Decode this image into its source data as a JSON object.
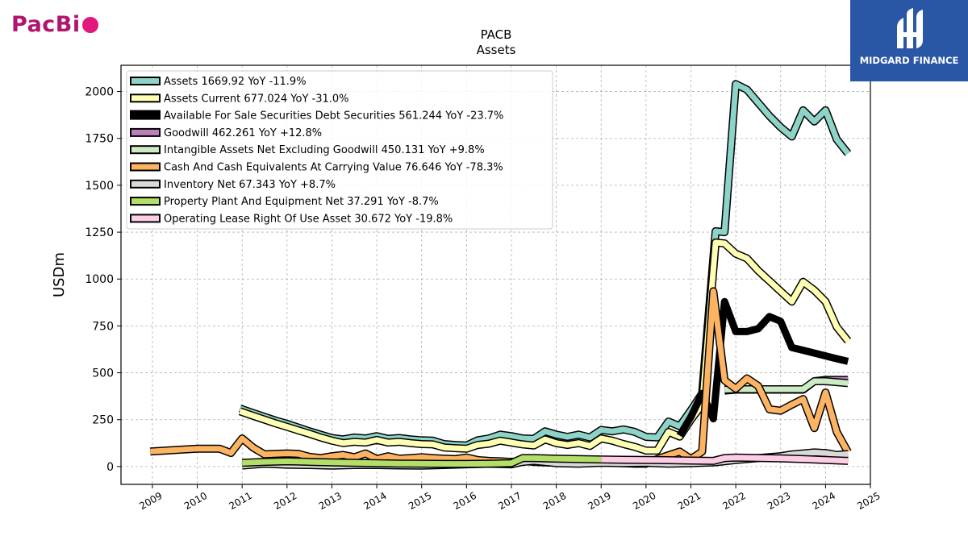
{
  "logos": {
    "left_text": "PacBi",
    "right_text": "MIDGARD FINANCE"
  },
  "chart_data": {
    "type": "line",
    "title": "PACB",
    "subtitle": "Assets",
    "ylabel": "USDm",
    "xlabel": "",
    "xlim": [
      2008.3,
      2025.0
    ],
    "ylim": [
      -95,
      2140
    ],
    "yticks": [
      0,
      250,
      500,
      750,
      1000,
      1250,
      1500,
      1750,
      2000
    ],
    "xticks": [
      "2009",
      "2010",
      "2011",
      "2012",
      "2013",
      "2014",
      "2015",
      "2016",
      "2017",
      "2018",
      "2019",
      "2020",
      "2021",
      "2022",
      "2023",
      "2024",
      "2025"
    ],
    "grid": true,
    "legend_position": "top-left",
    "series": [
      {
        "name": "Assets",
        "legend": "Assets  1669.92 YoY -11.9%",
        "color": "#8dd3c7",
        "width": 7,
        "points": [
          [
            2010.95,
            310
          ],
          [
            2011.25,
            285
          ],
          [
            2011.5,
            265
          ],
          [
            2011.75,
            245
          ],
          [
            2012.0,
            228
          ],
          [
            2012.25,
            208
          ],
          [
            2012.5,
            188
          ],
          [
            2012.75,
            170
          ],
          [
            2013.0,
            152
          ],
          [
            2013.25,
            145
          ],
          [
            2013.5,
            155
          ],
          [
            2013.75,
            150
          ],
          [
            2014.0,
            162
          ],
          [
            2014.25,
            148
          ],
          [
            2014.5,
            152
          ],
          [
            2014.75,
            145
          ],
          [
            2015.0,
            140
          ],
          [
            2015.25,
            138
          ],
          [
            2015.5,
            120
          ],
          [
            2015.75,
            115
          ],
          [
            2016.0,
            112
          ],
          [
            2016.25,
            140
          ],
          [
            2016.5,
            150
          ],
          [
            2016.75,
            170
          ],
          [
            2017.0,
            162
          ],
          [
            2017.25,
            150
          ],
          [
            2017.5,
            148
          ],
          [
            2017.75,
            188
          ],
          [
            2018.0,
            170
          ],
          [
            2018.25,
            158
          ],
          [
            2018.5,
            170
          ],
          [
            2018.75,
            155
          ],
          [
            2019.0,
            195
          ],
          [
            2019.25,
            188
          ],
          [
            2019.5,
            198
          ],
          [
            2019.75,
            185
          ],
          [
            2020.0,
            158
          ],
          [
            2020.25,
            155
          ],
          [
            2020.5,
            240
          ],
          [
            2020.75,
            215
          ],
          [
            2021.0,
            300
          ],
          [
            2021.25,
            390
          ],
          [
            2021.55,
            1255
          ],
          [
            2021.75,
            1250
          ],
          [
            2022.0,
            2040
          ],
          [
            2022.25,
            2010
          ],
          [
            2022.5,
            1940
          ],
          [
            2022.75,
            1870
          ],
          [
            2023.0,
            1810
          ],
          [
            2023.25,
            1760
          ],
          [
            2023.5,
            1900
          ],
          [
            2023.75,
            1840
          ],
          [
            2024.0,
            1900
          ],
          [
            2024.25,
            1745
          ],
          [
            2024.5,
            1670
          ]
        ]
      },
      {
        "name": "Assets Current",
        "legend": "Assets Current  677.024 YoY -31.0%",
        "color": "#ffffb3",
        "width": 7,
        "points": [
          [
            2010.95,
            295
          ],
          [
            2011.25,
            270
          ],
          [
            2011.5,
            250
          ],
          [
            2011.75,
            230
          ],
          [
            2012.0,
            212
          ],
          [
            2012.25,
            193
          ],
          [
            2012.5,
            175
          ],
          [
            2012.75,
            155
          ],
          [
            2013.0,
            138
          ],
          [
            2013.25,
            125
          ],
          [
            2013.5,
            132
          ],
          [
            2013.75,
            128
          ],
          [
            2014.0,
            142
          ],
          [
            2014.25,
            128
          ],
          [
            2014.5,
            132
          ],
          [
            2014.75,
            125
          ],
          [
            2015.0,
            120
          ],
          [
            2015.25,
            118
          ],
          [
            2015.5,
            102
          ],
          [
            2015.75,
            98
          ],
          [
            2016.0,
            95
          ],
          [
            2016.25,
            115
          ],
          [
            2016.5,
            122
          ],
          [
            2016.75,
            138
          ],
          [
            2017.0,
            128
          ],
          [
            2017.25,
            118
          ],
          [
            2017.5,
            112
          ],
          [
            2017.75,
            145
          ],
          [
            2018.0,
            125
          ],
          [
            2018.25,
            115
          ],
          [
            2018.5,
            125
          ],
          [
            2018.75,
            110
          ],
          [
            2019.0,
            150
          ],
          [
            2019.25,
            138
          ],
          [
            2019.5,
            120
          ],
          [
            2019.75,
            105
          ],
          [
            2020.0,
            85
          ],
          [
            2020.25,
            85
          ],
          [
            2020.5,
            185
          ],
          [
            2020.75,
            160
          ],
          [
            2021.0,
            250
          ],
          [
            2021.25,
            330
          ],
          [
            2021.55,
            1195
          ],
          [
            2021.75,
            1190
          ],
          [
            2022.0,
            1135
          ],
          [
            2022.25,
            1110
          ],
          [
            2022.5,
            1045
          ],
          [
            2022.75,
            990
          ],
          [
            2023.0,
            935
          ],
          [
            2023.25,
            880
          ],
          [
            2023.5,
            985
          ],
          [
            2023.75,
            940
          ],
          [
            2024.0,
            880
          ],
          [
            2024.25,
            745
          ],
          [
            2024.5,
            670
          ]
        ]
      },
      {
        "name": "Available For Sale Securities Debt Securities",
        "legend": "Available For Sale Securities Debt Securities  561.244 YoY -23.7%",
        "color": "#000000",
        "width": 9,
        "points": [
          [
            2020.75,
            165
          ],
          [
            2021.0,
            265
          ],
          [
            2021.25,
            390
          ],
          [
            2021.5,
            255
          ],
          [
            2021.75,
            880
          ],
          [
            2022.0,
            720
          ],
          [
            2022.25,
            720
          ],
          [
            2022.5,
            735
          ],
          [
            2022.75,
            800
          ],
          [
            2023.0,
            775
          ],
          [
            2023.25,
            635
          ],
          [
            2023.5,
            620
          ],
          [
            2023.75,
            605
          ],
          [
            2024.0,
            590
          ],
          [
            2024.25,
            575
          ],
          [
            2024.5,
            561
          ]
        ]
      },
      {
        "name": "Goodwill",
        "legend": "Goodwill  462.261 YoY +12.8%",
        "color": "#bc80bd",
        "width": 7,
        "points": [
          [
            2021.75,
            405
          ],
          [
            2022.0,
            410
          ],
          [
            2022.5,
            410
          ],
          [
            2023.0,
            410
          ],
          [
            2023.5,
            410
          ],
          [
            2023.75,
            455
          ],
          [
            2024.0,
            462
          ],
          [
            2024.5,
            462
          ]
        ]
      },
      {
        "name": "Intangible Assets Net Excluding Goodwill",
        "legend": "Intangible Assets Net Excluding Goodwill  450.131 YoY +9.8%",
        "color": "#ccebc5",
        "width": 7,
        "points": [
          [
            2021.75,
            410
          ],
          [
            2022.0,
            412
          ],
          [
            2022.5,
            412
          ],
          [
            2023.0,
            412
          ],
          [
            2023.5,
            412
          ],
          [
            2023.75,
            455
          ],
          [
            2024.0,
            455
          ],
          [
            2024.25,
            450
          ],
          [
            2024.5,
            445
          ]
        ]
      },
      {
        "name": "Cash And Cash Equivalents At Carrying Value",
        "legend": "Cash And Cash Equivalents At Carrying Value  76.646 YoY -78.3%",
        "color": "#fdb462",
        "width": 7,
        "points": [
          [
            2008.95,
            80
          ],
          [
            2009.5,
            88
          ],
          [
            2010.0,
            95
          ],
          [
            2010.5,
            95
          ],
          [
            2010.75,
            72
          ],
          [
            2011.0,
            150
          ],
          [
            2011.25,
            100
          ],
          [
            2011.5,
            65
          ],
          [
            2011.75,
            68
          ],
          [
            2012.0,
            70
          ],
          [
            2012.25,
            68
          ],
          [
            2012.5,
            52
          ],
          [
            2012.75,
            45
          ],
          [
            2013.0,
            55
          ],
          [
            2013.25,
            62
          ],
          [
            2013.5,
            50
          ],
          [
            2013.75,
            70
          ],
          [
            2014.0,
            40
          ],
          [
            2014.25,
            55
          ],
          [
            2014.5,
            42
          ],
          [
            2014.75,
            45
          ],
          [
            2015.0,
            50
          ],
          [
            2015.25,
            45
          ],
          [
            2015.5,
            42
          ],
          [
            2015.75,
            40
          ],
          [
            2016.0,
            48
          ],
          [
            2016.25,
            35
          ],
          [
            2016.5,
            30
          ],
          [
            2016.75,
            28
          ],
          [
            2017.0,
            25
          ],
          [
            2017.25,
            30
          ],
          [
            2017.5,
            25
          ],
          [
            2017.75,
            22
          ],
          [
            2018.0,
            20
          ],
          [
            2018.25,
            25
          ],
          [
            2018.5,
            20
          ],
          [
            2018.75,
            18
          ],
          [
            2019.0,
            25
          ],
          [
            2019.25,
            20
          ],
          [
            2019.5,
            18
          ],
          [
            2019.75,
            15
          ],
          [
            2020.0,
            15
          ],
          [
            2020.25,
            40
          ],
          [
            2020.5,
            60
          ],
          [
            2020.75,
            80
          ],
          [
            2021.0,
            40
          ],
          [
            2021.25,
            80
          ],
          [
            2021.5,
            935
          ],
          [
            2021.75,
            460
          ],
          [
            2022.0,
            415
          ],
          [
            2022.25,
            470
          ],
          [
            2022.5,
            430
          ],
          [
            2022.75,
            305
          ],
          [
            2023.0,
            298
          ],
          [
            2023.25,
            330
          ],
          [
            2023.5,
            360
          ],
          [
            2023.75,
            205
          ],
          [
            2024.0,
            395
          ],
          [
            2024.25,
            185
          ],
          [
            2024.5,
            77
          ]
        ]
      },
      {
        "name": "Inventory Net",
        "legend": "Inventory Net  67.343 YoY +8.7%",
        "color": "#d9d9d9",
        "width": 7,
        "points": [
          [
            2011.0,
            5
          ],
          [
            2011.5,
            15
          ],
          [
            2012.0,
            10
          ],
          [
            2012.5,
            8
          ],
          [
            2013.0,
            5
          ],
          [
            2013.5,
            8
          ],
          [
            2014.0,
            8
          ],
          [
            2014.5,
            6
          ],
          [
            2015.0,
            5
          ],
          [
            2015.5,
            8
          ],
          [
            2016.0,
            12
          ],
          [
            2016.5,
            15
          ],
          [
            2017.0,
            12
          ],
          [
            2017.25,
            25
          ],
          [
            2017.5,
            30
          ],
          [
            2018.0,
            18
          ],
          [
            2018.5,
            15
          ],
          [
            2019.0,
            20
          ],
          [
            2019.5,
            18
          ],
          [
            2020.0,
            20
          ],
          [
            2020.5,
            15
          ],
          [
            2021.0,
            18
          ],
          [
            2021.5,
            22
          ],
          [
            2022.0,
            35
          ],
          [
            2022.5,
            45
          ],
          [
            2023.0,
            55
          ],
          [
            2023.25,
            65
          ],
          [
            2023.5,
            70
          ],
          [
            2023.75,
            75
          ],
          [
            2024.0,
            72
          ],
          [
            2024.25,
            62
          ],
          [
            2024.5,
            67
          ]
        ]
      },
      {
        "name": "Property Plant And Equipment Net",
        "legend": "Property Plant And Equipment Net  37.291 YoY -8.7%",
        "color": "#b3de69",
        "width": 7,
        "points": [
          [
            2011.0,
            20
          ],
          [
            2011.5,
            25
          ],
          [
            2012.0,
            28
          ],
          [
            2012.5,
            25
          ],
          [
            2013.0,
            22
          ],
          [
            2013.5,
            20
          ],
          [
            2014.0,
            18
          ],
          [
            2014.5,
            16
          ],
          [
            2015.0,
            15
          ],
          [
            2015.5,
            14
          ],
          [
            2016.0,
            14
          ],
          [
            2016.5,
            15
          ],
          [
            2017.0,
            18
          ],
          [
            2017.25,
            45
          ],
          [
            2017.5,
            45
          ],
          [
            2018.0,
            42
          ],
          [
            2018.5,
            40
          ],
          [
            2019.0,
            38
          ]
        ]
      },
      {
        "name": "Operating Lease Right Of Use Asset",
        "legend": "Operating Lease Right Of Use Asset  30.672 YoY -19.8%",
        "color": "#fccde5",
        "width": 7,
        "points": [
          [
            2019.0,
            38
          ],
          [
            2019.5,
            36
          ],
          [
            2020.0,
            35
          ],
          [
            2020.5,
            34
          ],
          [
            2021.0,
            32
          ],
          [
            2021.5,
            30
          ],
          [
            2021.75,
            45
          ],
          [
            2022.0,
            48
          ],
          [
            2022.5,
            46
          ],
          [
            2023.0,
            44
          ],
          [
            2023.5,
            40
          ],
          [
            2024.0,
            35
          ],
          [
            2024.5,
            30
          ]
        ]
      }
    ]
  }
}
